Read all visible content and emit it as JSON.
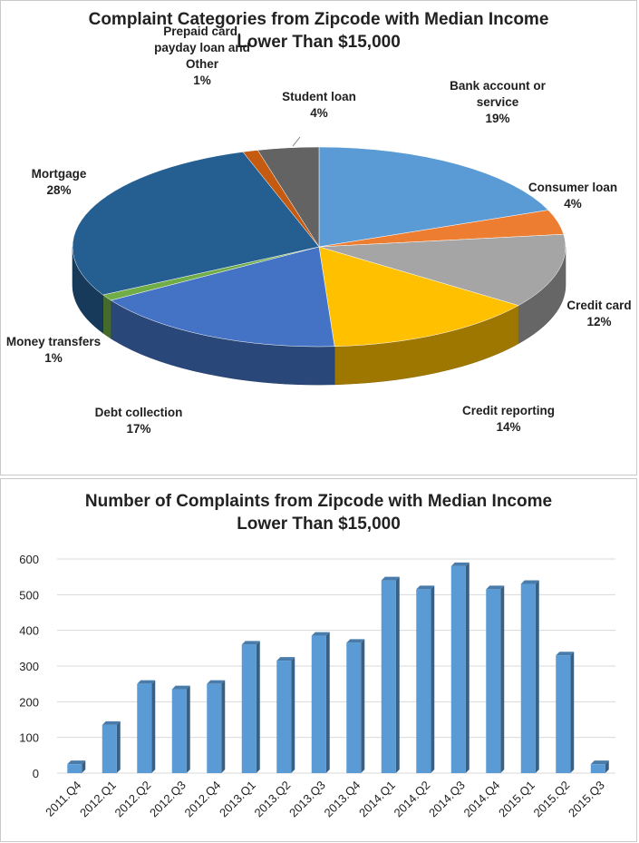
{
  "colors": {
    "bank": "#5b9bd5",
    "consumer": "#ed7d31",
    "credit_card": "#a5a5a5",
    "credit_reporting": "#ffc000",
    "debt": "#4472c4",
    "money": "#70ad47",
    "mortgage": "#255e91",
    "prepaid": "#c55a11",
    "student": "#636363",
    "bar": "#5b9bd5"
  },
  "chart_data": [
    {
      "type": "pie",
      "title_lines": [
        "Complaint Categories from Zipcode with Median Income",
        "Lower Than $15,000"
      ],
      "slices": [
        {
          "label": "Bank account or service",
          "label_lines": [
            "Bank account  or",
            "service"
          ],
          "percent": 19,
          "percent_label": "19%",
          "color_key": "bank"
        },
        {
          "label": "Consumer loan",
          "label_lines": [
            "Consumer loan"
          ],
          "percent": 4,
          "percent_label": "4%",
          "color_key": "consumer"
        },
        {
          "label": "Credit card",
          "label_lines": [
            "Credit card"
          ],
          "percent": 12,
          "percent_label": "12%",
          "color_key": "credit_card"
        },
        {
          "label": "Credit reporting",
          "label_lines": [
            "Credit reporting"
          ],
          "percent": 14,
          "percent_label": "14%",
          "color_key": "credit_reporting"
        },
        {
          "label": "Debt collection",
          "label_lines": [
            "Debt collection"
          ],
          "percent": 17,
          "percent_label": "17%",
          "color_key": "debt"
        },
        {
          "label": "Money transfers",
          "label_lines": [
            "Money transfers"
          ],
          "percent": 1,
          "percent_label": "1%",
          "color_key": "money"
        },
        {
          "label": "Mortgage",
          "label_lines": [
            "Mortgage"
          ],
          "percent": 28,
          "percent_label": "28%",
          "color_key": "mortgage"
        },
        {
          "label": "Prepaid card, payday loan and Other",
          "label_lines": [
            "Prepaid card,",
            "payday loan and",
            "Other"
          ],
          "percent": 1,
          "percent_label": "1%",
          "color_key": "prepaid"
        },
        {
          "label": "Student loan",
          "label_lines": [
            "Student loan"
          ],
          "percent": 4,
          "percent_label": "4%",
          "color_key": "student"
        }
      ]
    },
    {
      "type": "bar",
      "title_lines": [
        "Number of Complaints from Zipcode with Median Income",
        "Lower Than $15,000"
      ],
      "categories": [
        "2011.Q4",
        "2012.Q1",
        "2012.Q2",
        "2012.Q3",
        "2012.Q4",
        "2013.Q1",
        "2013.Q2",
        "2013.Q3",
        "2013.Q4",
        "2014.Q1",
        "2014.Q2",
        "2014.Q3",
        "2014.Q4",
        "2015.Q1",
        "2015.Q2",
        "2015.Q3"
      ],
      "values": [
        25,
        135,
        250,
        235,
        250,
        360,
        315,
        385,
        365,
        540,
        515,
        580,
        515,
        530,
        330,
        25
      ],
      "ylim": [
        0,
        600
      ],
      "yticks": [
        0,
        100,
        200,
        300,
        400,
        500,
        600
      ],
      "grid": true,
      "legend": "none"
    }
  ]
}
